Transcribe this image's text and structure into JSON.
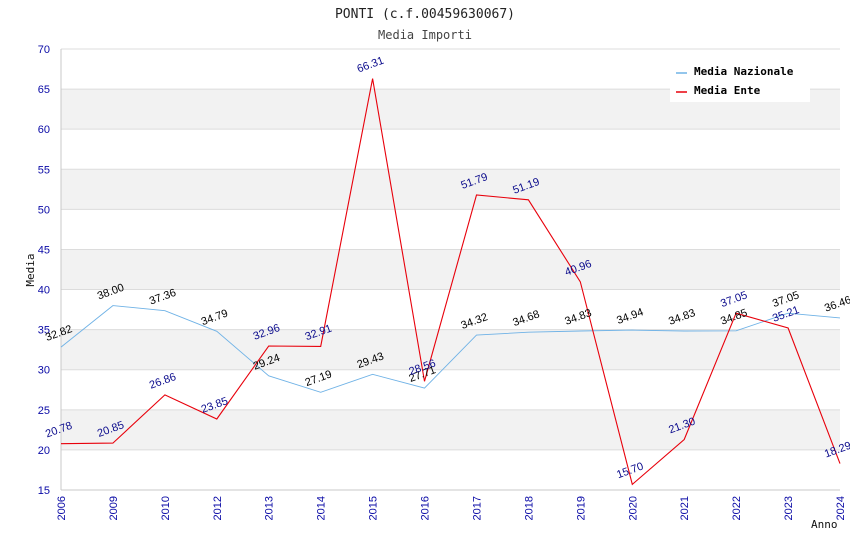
{
  "chart_data": {
    "type": "line",
    "title": "PONTI (c.f.00459630067)",
    "subtitle": "Media Importi",
    "xlabel": "Anno",
    "ylabel": "Media",
    "ylim": [
      15,
      70
    ],
    "ytick_step": 5,
    "grid": "horizontal bands",
    "legend_position": "top-right",
    "categories": [
      "2006",
      "2009",
      "2010",
      "2012",
      "2013",
      "2014",
      "2015",
      "2016",
      "2017",
      "2018",
      "2019",
      "2020",
      "2021",
      "2022",
      "2023",
      "2024"
    ],
    "series": [
      {
        "name": "Media Nazionale",
        "color": "#6fb2e6",
        "label_color": "#000000",
        "values": [
          32.82,
          38.0,
          37.36,
          34.79,
          29.24,
          27.19,
          29.43,
          27.71,
          34.32,
          34.68,
          34.83,
          34.94,
          34.83,
          34.85,
          37.05,
          36.46
        ]
      },
      {
        "name": "Media Ente",
        "color": "#e8000b",
        "label_color": "#0a0a8c",
        "values": [
          20.78,
          20.85,
          26.86,
          23.85,
          32.96,
          32.91,
          66.31,
          28.56,
          51.79,
          51.19,
          40.96,
          15.7,
          21.3,
          37.05,
          35.21,
          18.29
        ]
      }
    ]
  }
}
